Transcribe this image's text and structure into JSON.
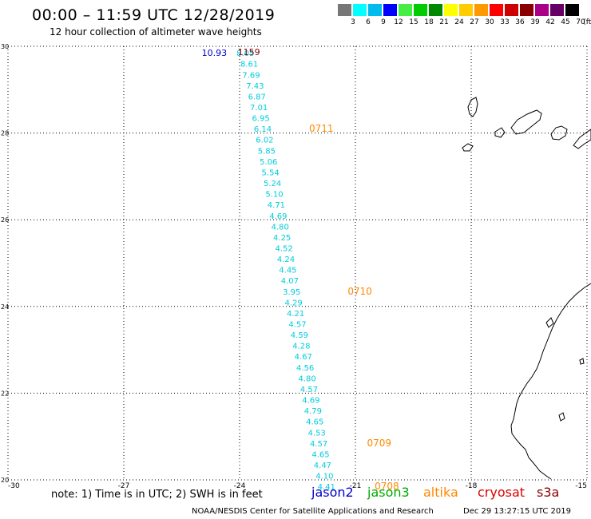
{
  "header": {
    "title": "00:00 – 11:59 UTC 12/28/2019",
    "subtitle": "12 hour collection of altimeter wave heights"
  },
  "legend": {
    "unit": "(ft)",
    "levels": [
      {
        "label": "3",
        "color": "#777777"
      },
      {
        "label": "6",
        "color": "#00ffff"
      },
      {
        "label": "9",
        "color": "#00bbee"
      },
      {
        "label": "12",
        "color": "#0000ff"
      },
      {
        "label": "15",
        "color": "#44ee44"
      },
      {
        "label": "18",
        "color": "#00cc00"
      },
      {
        "label": "21",
        "color": "#008800"
      },
      {
        "label": "24",
        "color": "#ffff00"
      },
      {
        "label": "27",
        "color": "#ffcc00"
      },
      {
        "label": "30",
        "color": "#ff9900"
      },
      {
        "label": "33",
        "color": "#ff0000"
      },
      {
        "label": "36",
        "color": "#cc0000"
      },
      {
        "label": "39",
        "color": "#880000"
      },
      {
        "label": "42",
        "color": "#aa0088"
      },
      {
        "label": "45",
        "color": "#660066"
      },
      {
        "label": "70",
        "color": "#000000"
      }
    ]
  },
  "map": {
    "lon_range": [
      -30,
      -15
    ],
    "lat_range": [
      20,
      30
    ],
    "lon_ticks": [
      "-30",
      "-27",
      "-24",
      "-21",
      "-18",
      "-15"
    ],
    "lat_ticks": [
      "20",
      "22",
      "24",
      "26",
      "28",
      "30"
    ],
    "colors": {
      "track": "#00ccdd",
      "time": "#ff8800",
      "dark_red": "#880000",
      "blue": "#0000cc"
    },
    "track_points": [
      {
        "lon": -23.85,
        "lat": 29.85,
        "v": "8.05"
      },
      {
        "lon": -23.75,
        "lat": 29.6,
        "v": "8.61"
      },
      {
        "lon": -23.7,
        "lat": 29.35,
        "v": "7.69"
      },
      {
        "lon": -23.6,
        "lat": 29.1,
        "v": "7.43"
      },
      {
        "lon": -23.55,
        "lat": 28.85,
        "v": "6.87"
      },
      {
        "lon": -23.5,
        "lat": 28.6,
        "v": "7.01"
      },
      {
        "lon": -23.45,
        "lat": 28.35,
        "v": "6.95"
      },
      {
        "lon": -23.4,
        "lat": 28.1,
        "v": "6.14"
      },
      {
        "lon": -23.35,
        "lat": 27.85,
        "v": "6.02"
      },
      {
        "lon": -23.3,
        "lat": 27.6,
        "v": "5.85"
      },
      {
        "lon": -23.25,
        "lat": 27.35,
        "v": "5.06"
      },
      {
        "lon": -23.2,
        "lat": 27.1,
        "v": "5.54"
      },
      {
        "lon": -23.15,
        "lat": 26.85,
        "v": "5.24"
      },
      {
        "lon": -23.1,
        "lat": 26.6,
        "v": "5.10"
      },
      {
        "lon": -23.05,
        "lat": 26.35,
        "v": "4.71"
      },
      {
        "lon": -23.0,
        "lat": 26.1,
        "v": "4.69"
      },
      {
        "lon": -22.95,
        "lat": 25.85,
        "v": "4.80"
      },
      {
        "lon": -22.9,
        "lat": 25.6,
        "v": "4.25"
      },
      {
        "lon": -22.85,
        "lat": 25.35,
        "v": "4.52"
      },
      {
        "lon": -22.8,
        "lat": 25.1,
        "v": "4.24"
      },
      {
        "lon": -22.75,
        "lat": 24.85,
        "v": "4.45"
      },
      {
        "lon": -22.7,
        "lat": 24.6,
        "v": "4.07"
      },
      {
        "lon": -22.65,
        "lat": 24.35,
        "v": "3.95"
      },
      {
        "lon": -22.6,
        "lat": 24.1,
        "v": "4.29"
      },
      {
        "lon": -22.55,
        "lat": 23.85,
        "v": "4.21"
      },
      {
        "lon": -22.5,
        "lat": 23.6,
        "v": "4.57"
      },
      {
        "lon": -22.45,
        "lat": 23.35,
        "v": "4.59"
      },
      {
        "lon": -22.4,
        "lat": 23.1,
        "v": "4.28"
      },
      {
        "lon": -22.35,
        "lat": 22.85,
        "v": "4.67"
      },
      {
        "lon": -22.3,
        "lat": 22.6,
        "v": "4.56"
      },
      {
        "lon": -22.25,
        "lat": 22.35,
        "v": "4.80"
      },
      {
        "lon": -22.2,
        "lat": 22.1,
        "v": "4.57"
      },
      {
        "lon": -22.15,
        "lat": 21.85,
        "v": "4.69"
      },
      {
        "lon": -22.1,
        "lat": 21.6,
        "v": "4.79"
      },
      {
        "lon": -22.05,
        "lat": 21.35,
        "v": "4.65"
      },
      {
        "lon": -22.0,
        "lat": 21.1,
        "v": "4.53"
      },
      {
        "lon": -21.95,
        "lat": 20.85,
        "v": "4.57"
      },
      {
        "lon": -21.9,
        "lat": 20.6,
        "v": "4.65"
      },
      {
        "lon": -21.85,
        "lat": 20.35,
        "v": "4.47"
      },
      {
        "lon": -21.8,
        "lat": 20.1,
        "v": "4.10"
      },
      {
        "lon": -21.75,
        "lat": 19.85,
        "v": "4.41"
      }
    ],
    "time_labels": [
      {
        "lon": -22.2,
        "lat": 28.1,
        "t": "0711"
      },
      {
        "lon": -21.2,
        "lat": 24.35,
        "t": "0710"
      },
      {
        "lon": -20.7,
        "lat": 20.85,
        "t": "0709"
      },
      {
        "lon": -20.5,
        "lat": 19.85,
        "t": "0708"
      }
    ],
    "other_labels": [
      {
        "lon": -24.98,
        "lat": 29.85,
        "t": "10.93",
        "color_key": "blue"
      },
      {
        "lon": -24.05,
        "lat": 29.87,
        "t": "1159",
        "color_key": "dark_red"
      }
    ]
  },
  "footer": {
    "note": "note: 1) Time is in UTC; 2) SWH is in feet",
    "satellites": [
      {
        "name": "jason2",
        "color": "#0000cc"
      },
      {
        "name": "jason3",
        "color": "#00aa00"
      },
      {
        "name": "altika",
        "color": "#ff8800"
      },
      {
        "name": "cryosat",
        "color": "#dd0000"
      },
      {
        "name": "s3a",
        "color": "#880000"
      }
    ],
    "credit": "NOAA/NESDIS Center for Satellite Applications and Research",
    "timestamp": "Dec 29 13:27:15 UTC 2019"
  }
}
